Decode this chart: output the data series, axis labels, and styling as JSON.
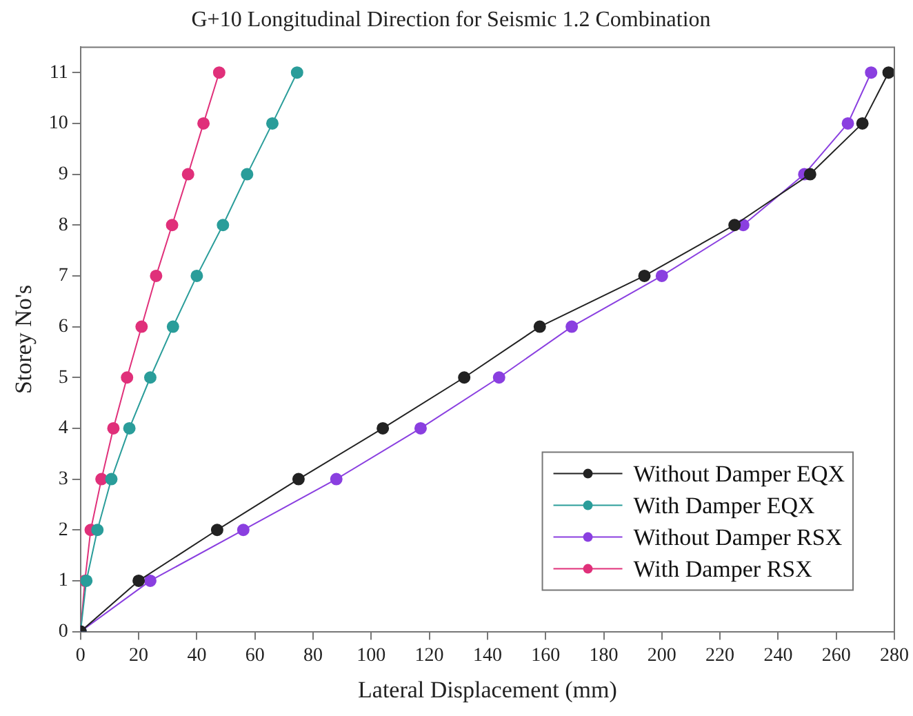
{
  "chart_data": {
    "type": "line",
    "title": "G+10 Longitudinal Direction for Seismic 1.2 Combination",
    "xlabel": "Lateral Displacement (mm)",
    "ylabel": "Storey No's",
    "xlim": [
      0,
      280
    ],
    "xticks": [
      0,
      20,
      40,
      60,
      80,
      100,
      120,
      140,
      160,
      180,
      200,
      220,
      240,
      260,
      280
    ],
    "ylim": [
      0,
      11.5
    ],
    "yticks": [
      0,
      1,
      2,
      3,
      4,
      5,
      6,
      7,
      8,
      9,
      10,
      11
    ],
    "grid": false,
    "legend": "bottom right",
    "marker": "circle",
    "line_style": "solid",
    "series": [
      {
        "name": "Without Damper EQX",
        "color": "#222222",
        "x": [
          0,
          20,
          47,
          75,
          104,
          132,
          158,
          194,
          225,
          251,
          269,
          278
        ],
        "values": [
          0,
          1,
          2,
          3,
          4,
          5,
          6,
          7,
          8,
          9,
          10,
          11
        ]
      },
      {
        "name": "With Damper EQX",
        "color": "#2a9d9a",
        "x": [
          0,
          2,
          5.8,
          10.6,
          16.8,
          24,
          31.8,
          40,
          49,
          57.3,
          66,
          74.5
        ],
        "values": [
          0,
          1,
          2,
          3,
          4,
          5,
          6,
          7,
          8,
          9,
          10,
          11
        ]
      },
      {
        "name": "Without Damper RSX",
        "color": "#8a3fe0",
        "x": [
          0,
          24,
          56,
          88,
          117,
          144,
          169,
          200,
          228,
          249,
          264,
          272
        ],
        "values": [
          0,
          1,
          2,
          3,
          4,
          5,
          6,
          7,
          8,
          9,
          10,
          11
        ]
      },
      {
        "name": "With Damper RSX",
        "color": "#e0307a",
        "x": [
          0,
          1.5,
          3.5,
          7.2,
          11.3,
          16,
          21,
          26,
          31.5,
          37,
          42.3,
          47.7
        ],
        "values": [
          0,
          1,
          2,
          3,
          4,
          5,
          6,
          7,
          8,
          9,
          10,
          11
        ]
      }
    ]
  }
}
